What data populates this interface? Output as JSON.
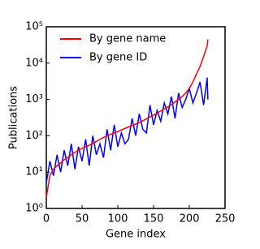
{
  "chart_data": {
    "type": "line",
    "x_label": "Gene index",
    "y_label": "Publications",
    "log_y": true,
    "legend": "upper left",
    "xlim": [
      0,
      250
    ],
    "xticks": [
      0,
      50,
      100,
      150,
      200,
      250
    ],
    "ylim": [
      1,
      100000
    ],
    "yticks": [
      {
        "value": 1,
        "label": "10⁰"
      },
      {
        "value": 10,
        "label": "10¹"
      },
      {
        "value": 100,
        "label": "10²"
      },
      {
        "value": 1000,
        "label": "10³"
      },
      {
        "value": 10000,
        "label": "10⁴"
      },
      {
        "value": 100000,
        "label": "10⁵"
      }
    ],
    "x": [
      0,
      5,
      10,
      15,
      20,
      25,
      30,
      35,
      40,
      45,
      50,
      55,
      60,
      65,
      70,
      75,
      80,
      85,
      90,
      95,
      100,
      105,
      110,
      115,
      120,
      125,
      130,
      135,
      140,
      145,
      150,
      155,
      160,
      165,
      170,
      175,
      180,
      185,
      190,
      195,
      200,
      205,
      210,
      215,
      220,
      225,
      226
    ],
    "series": [
      {
        "name": "By gene name",
        "color": "#ff0000",
        "values": [
          2,
          8,
          12,
          15,
          18,
          22,
          25,
          30,
          35,
          40,
          45,
          50,
          55,
          62,
          70,
          80,
          90,
          100,
          110,
          120,
          130,
          145,
          160,
          175,
          190,
          210,
          230,
          260,
          290,
          330,
          370,
          420,
          480,
          550,
          620,
          720,
          850,
          1000,
          1200,
          1500,
          2000,
          3000,
          5000,
          8000,
          15000,
          30000,
          45000
        ]
      },
      {
        "name": "By gene ID",
        "color": "#0000ff",
        "values": [
          5,
          20,
          8,
          30,
          10,
          40,
          15,
          60,
          12,
          50,
          20,
          80,
          15,
          100,
          30,
          60,
          25,
          150,
          40,
          200,
          50,
          120,
          60,
          80,
          300,
          100,
          400,
          150,
          120,
          700,
          200,
          500,
          250,
          800,
          400,
          1200,
          300,
          1500,
          600,
          1000,
          2000,
          800,
          1500,
          3000,
          700,
          4000,
          1000
        ]
      }
    ]
  }
}
